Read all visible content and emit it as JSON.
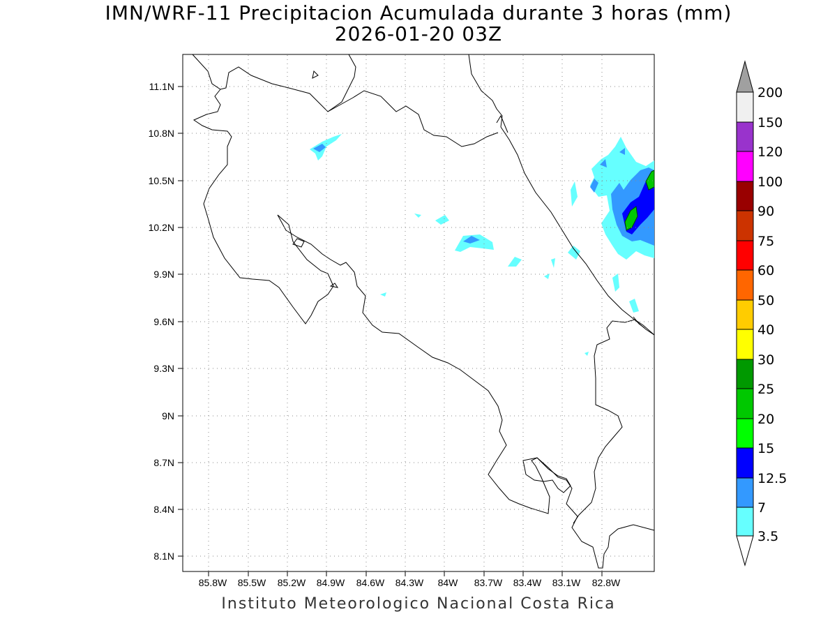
{
  "title": "IMN/WRF-11 Precipitacion Acumulada durante 3 horas (mm)",
  "subtitle": "2026-01-20 03Z",
  "footer": "Instituto Meteorologico Nacional Costa Rica",
  "lat_ticks": [
    "11.1N",
    "10.8N",
    "10.5N",
    "10.2N",
    "9.9N",
    "9.6N",
    "9.3N",
    "9N",
    "8.7N",
    "8.4N",
    "8.1N"
  ],
  "lon_ticks": [
    "85.8W",
    "85.5W",
    "85.2W",
    "84.9W",
    "84.6W",
    "84.3W",
    "84W",
    "83.7W",
    "83.4W",
    "83.1W",
    "82.8W"
  ],
  "colorbar": {
    "labels": [
      "3.5",
      "7",
      "12.5",
      "15",
      "20",
      "25",
      "30",
      "40",
      "50",
      "60",
      "75",
      "90",
      "100",
      "120",
      "150",
      "200"
    ],
    "colors": [
      "#ffffff",
      "#66ffff",
      "#3399ff",
      "#0000ff",
      "#00ff00",
      "#00c800",
      "#009900",
      "#ffff00",
      "#ffcc00",
      "#ff6600",
      "#ff0000",
      "#cc3300",
      "#990000",
      "#ff00ff",
      "#9933cc",
      "#f0f0f0",
      "#a0a0a0"
    ]
  }
}
